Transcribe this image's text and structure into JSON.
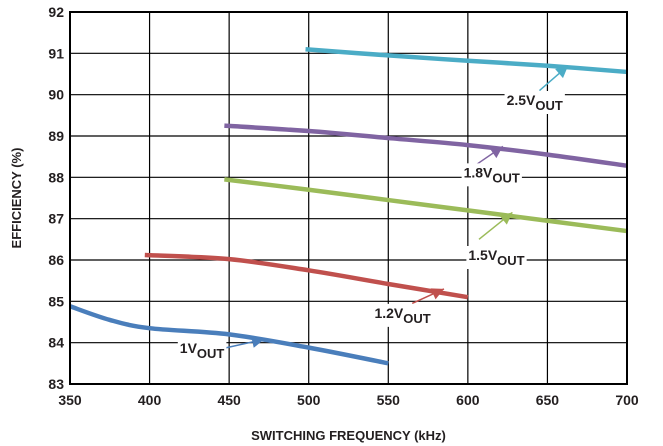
{
  "chart_data": {
    "type": "line",
    "title": "",
    "xlabel": "SWITCHING FREQUENCY (kHz)",
    "ylabel": "EFFICIENCY (%)",
    "xlim": [
      350,
      700
    ],
    "ylim": [
      83,
      92
    ],
    "x_ticks": [
      350,
      400,
      450,
      500,
      550,
      600,
      650,
      700
    ],
    "y_ticks": [
      83,
      84,
      85,
      86,
      87,
      88,
      89,
      90,
      91,
      92
    ],
    "grid": true,
    "legend": "none",
    "series": [
      {
        "label_main": "1V",
        "label_sub": "OUT",
        "color": "#4a7ebb",
        "x": [
          350,
          375,
          400,
          450,
          500,
          550
        ],
        "y": [
          84.88,
          84.55,
          84.35,
          84.2,
          83.88,
          83.5
        ],
        "label_pos": [
          433,
          83.75
        ],
        "arrow_tail": [
          445,
          83.85
        ],
        "arrow_head": [
          472,
          84.08
        ]
      },
      {
        "label_main": "1.2V",
        "label_sub": "OUT",
        "color": "#c0504d",
        "x": [
          397,
          450,
          500,
          550,
          600
        ],
        "y": [
          86.12,
          86.02,
          85.75,
          85.42,
          85.1
        ],
        "label_pos": [
          559,
          84.6
        ],
        "arrow_tail": [
          565,
          84.95
        ],
        "arrow_head": [
          585,
          85.3
        ]
      },
      {
        "label_main": "1.5V",
        "label_sub": "OUT",
        "color": "#9bbb59",
        "x": [
          447,
          500,
          550,
          600,
          650,
          700
        ],
        "y": [
          87.95,
          87.7,
          87.45,
          87.2,
          86.95,
          86.7
        ],
        "label_pos": [
          618,
          86.0
        ],
        "arrow_tail": [
          607,
          86.5
        ],
        "arrow_head": [
          628,
          87.15
        ]
      },
      {
        "label_main": "1.8V",
        "label_sub": "OUT",
        "color": "#8064a2",
        "x": [
          447,
          500,
          550,
          600,
          650,
          700
        ],
        "y": [
          89.25,
          89.12,
          88.95,
          88.78,
          88.55,
          88.28
        ],
        "label_pos": [
          615,
          88.0
        ],
        "arrow_tail": [
          605,
          88.3
        ],
        "arrow_head": [
          622,
          88.75
        ]
      },
      {
        "label_main": "2.5V",
        "label_sub": "OUT",
        "color": "#4bacc6",
        "x": [
          498,
          550,
          600,
          650,
          700
        ],
        "y": [
          91.1,
          90.95,
          90.82,
          90.7,
          90.55
        ],
        "label_pos": [
          642,
          89.75
        ],
        "arrow_tail": [
          645,
          90.1
        ],
        "arrow_head": [
          663,
          90.7
        ]
      }
    ]
  }
}
